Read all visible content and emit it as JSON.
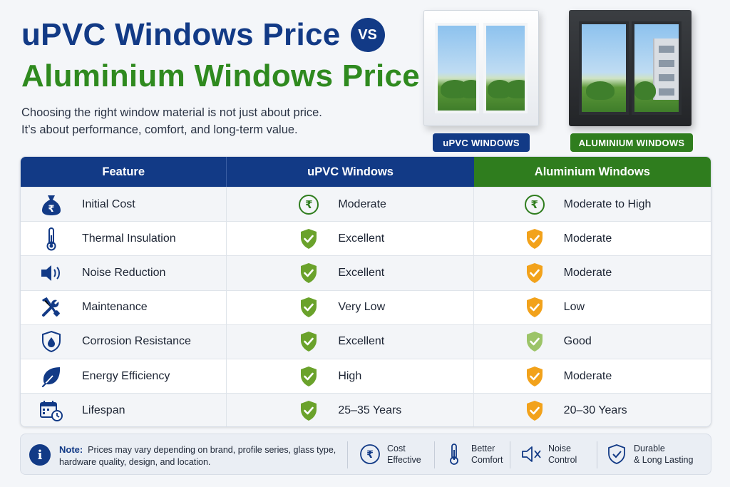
{
  "title": {
    "line1": "uPVC Windows Price",
    "vs": "VS",
    "line2": "Aluminium Windows Price"
  },
  "subtitle": {
    "line1": "Choosing the right window material is not just about price.",
    "line2": "It’s about performance, comfort, and long-term value."
  },
  "images": {
    "upvc_label": "uPVC WINDOWS",
    "alu_label": "ALUMINIUM WINDOWS"
  },
  "table": {
    "headers": {
      "feature": "Feature",
      "upvc": "uPVC Windows",
      "alu": "Aluminium Windows"
    },
    "rows": [
      {
        "feature": "Initial Cost",
        "icon": "money-bag-icon",
        "upvc": "Moderate",
        "alu": "Moderate to High",
        "upvc_mark": "rupee-icon",
        "alu_mark": "rupee-icon"
      },
      {
        "feature": "Thermal Insulation",
        "icon": "thermometer-icon",
        "upvc": "Excellent",
        "alu": "Moderate",
        "upvc_mark": "green-shield-check",
        "alu_mark": "orange-shield-check"
      },
      {
        "feature": "Noise Reduction",
        "icon": "speaker-icon",
        "upvc": "Excellent",
        "alu": "Moderate",
        "upvc_mark": "green-shield-check",
        "alu_mark": "orange-shield-check"
      },
      {
        "feature": "Maintenance",
        "icon": "tools-icon",
        "upvc": "Very Low",
        "alu": "Low",
        "upvc_mark": "green-shield-check",
        "alu_mark": "orange-shield-check"
      },
      {
        "feature": "Corrosion Resistance",
        "icon": "shield-drop-icon",
        "upvc": "Excellent",
        "alu": "Good",
        "upvc_mark": "green-shield-check",
        "alu_mark": "lightgreen-shield-check"
      },
      {
        "feature": "Energy Efficiency",
        "icon": "leaf-icon",
        "upvc": "High",
        "alu": "Moderate",
        "upvc_mark": "green-shield-check",
        "alu_mark": "orange-shield-check"
      },
      {
        "feature": "Lifespan",
        "icon": "calendar-clock-icon",
        "upvc": "25–35 Years",
        "alu": "20–30 Years",
        "upvc_mark": "green-shield-check",
        "alu_mark": "orange-shield-check"
      }
    ]
  },
  "footer": {
    "note_label": "Note:",
    "note_text": "Prices may vary depending on brand, profile series, glass type, hardware quality, design, and location.",
    "features": [
      {
        "line1": "Cost",
        "line2": "Effective",
        "icon": "rupee-circle-icon"
      },
      {
        "line1": "Better",
        "line2": "Comfort",
        "icon": "thermometer-icon"
      },
      {
        "line1": "Noise",
        "line2": "Control",
        "icon": "muted-speaker-icon"
      },
      {
        "line1": "Durable",
        "line2": "& Long Lasting",
        "icon": "shield-check-icon"
      }
    ]
  },
  "colors": {
    "navy": "#123a86",
    "green": "#2f7d1e",
    "check_green": "#6aa22b",
    "check_orange": "#f2a21b",
    "check_lightgreen": "#9cc468"
  }
}
